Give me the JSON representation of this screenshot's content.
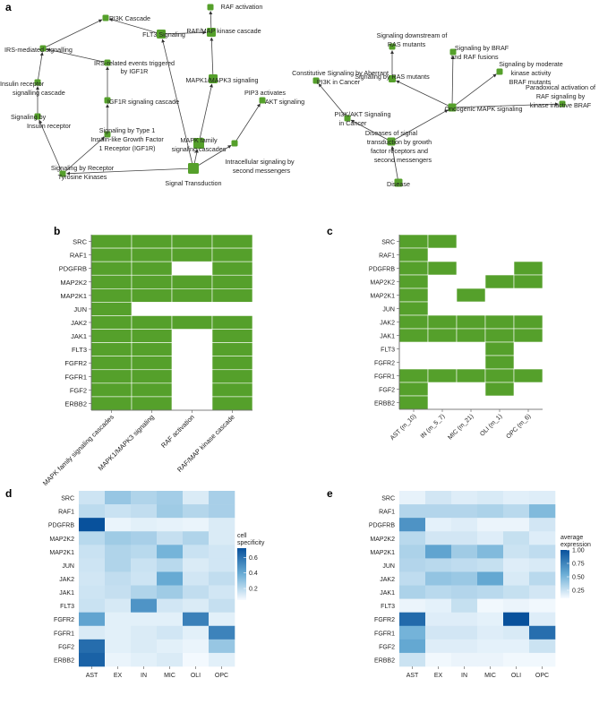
{
  "figure": {
    "panel_labels": [
      "a",
      "b",
      "c",
      "d",
      "e"
    ],
    "accent_color": "#55a02b",
    "network": {
      "nodes": [
        {
          "id": "n0",
          "label": "RAF activation"
        },
        {
          "id": "n1",
          "label": "PI3K Cascade"
        },
        {
          "id": "n2",
          "label": "RAF/MAP kinase cascade"
        },
        {
          "id": "n3",
          "label": "IRS-mediated signalling"
        },
        {
          "id": "n4",
          "label": "FLT3 Signaling"
        },
        {
          "id": "n5",
          "label": "IRS-related events triggered by IGF1R"
        },
        {
          "id": "n6",
          "label": "MAPK1/MAPK3 signaling"
        },
        {
          "id": "n7",
          "label": "Insulin receptor signalling cascade"
        },
        {
          "id": "n8",
          "label": "IGF1R signaling cascade"
        },
        {
          "id": "n9",
          "label": "Signaling by Insulin receptor"
        },
        {
          "id": "n10",
          "label": "PIP3 activates AKT signaling"
        },
        {
          "id": "n11",
          "label": "Signaling by Type 1 Insulin-like Growth Factor 1 Receptor (IGF1R)"
        },
        {
          "id": "n12",
          "label": "MAPK family signaling cascades"
        },
        {
          "id": "n13",
          "label": "Intracellular signaling by second messengers"
        },
        {
          "id": "n14",
          "label": "Signaling by Receptor Tyrosine Kinases"
        },
        {
          "id": "n15",
          "label": "Signal Transduction"
        },
        {
          "id": "n16",
          "label": "Signaling downstream of RAS mutants"
        },
        {
          "id": "n17",
          "label": "Signaling by BRAF and RAF fusions"
        },
        {
          "id": "n18",
          "label": "Signaling by moderate kinase activity BRAF mutants"
        },
        {
          "id": "n19",
          "label": "Constitutive Signaling by Aberrant PI3K in Cancer"
        },
        {
          "id": "n20",
          "label": "Signaling by RAS mutants"
        },
        {
          "id": "n21",
          "label": "Paradoxical activation of RAF signaling by kinase inactive BRAF"
        },
        {
          "id": "n22",
          "label": "Oncogenic MAPK signaling"
        },
        {
          "id": "n23",
          "label": "PI3K/AKT Signaling in Cancer"
        },
        {
          "id": "n24",
          "label": "Diseases of signal transduction by growth factor receptors and second messengers"
        },
        {
          "id": "n25",
          "label": "Disease"
        }
      ],
      "edges": [
        [
          "n15",
          "n14"
        ],
        [
          "n15",
          "n12"
        ],
        [
          "n15",
          "n13"
        ],
        [
          "n14",
          "n9"
        ],
        [
          "n14",
          "n11"
        ],
        [
          "n9",
          "n7"
        ],
        [
          "n7",
          "n3"
        ],
        [
          "n11",
          "n8"
        ],
        [
          "n8",
          "n5"
        ],
        [
          "n5",
          "n3"
        ],
        [
          "n3",
          "n1"
        ],
        [
          "n15",
          "n4"
        ],
        [
          "n4",
          "n1"
        ],
        [
          "n4",
          "n2"
        ],
        [
          "n12",
          "n6"
        ],
        [
          "n6",
          "n2"
        ],
        [
          "n2",
          "n0"
        ],
        [
          "n13",
          "n10"
        ],
        [
          "n25",
          "n24"
        ],
        [
          "n24",
          "n22"
        ],
        [
          "n24",
          "n23"
        ],
        [
          "n23",
          "n19"
        ],
        [
          "n22",
          "n20"
        ],
        [
          "n20",
          "n16"
        ],
        [
          "n22",
          "n17"
        ],
        [
          "n22",
          "n18"
        ],
        [
          "n22",
          "n21"
        ]
      ]
    },
    "panel_b": {
      "rows": [
        "SRC",
        "RAF1",
        "PDGFRB",
        "MAP2K2",
        "MAP2K1",
        "JUN",
        "JAK2",
        "JAK1",
        "FLT3",
        "FGFR2",
        "FGFR1",
        "FGF2",
        "ERBB2"
      ],
      "cols": [
        "MAPK family signaling cascades",
        "MAPK1/MAPK3 signaling",
        "RAF activation",
        "RAF/MAP kinase cascade"
      ],
      "matrix": [
        [
          1,
          1,
          1,
          1
        ],
        [
          1,
          1,
          1,
          1
        ],
        [
          1,
          1,
          0,
          1
        ],
        [
          1,
          1,
          1,
          1
        ],
        [
          1,
          1,
          1,
          1
        ],
        [
          1,
          0,
          0,
          0
        ],
        [
          1,
          1,
          1,
          1
        ],
        [
          1,
          1,
          0,
          1
        ],
        [
          1,
          1,
          0,
          1
        ],
        [
          1,
          1,
          0,
          1
        ],
        [
          1,
          1,
          0,
          1
        ],
        [
          1,
          1,
          0,
          1
        ],
        [
          1,
          1,
          0,
          1
        ]
      ]
    },
    "panel_c": {
      "rows": [
        "SRC",
        "RAF1",
        "PDGFRB",
        "MAP2K2",
        "MAP2K1",
        "JUN",
        "JAK2",
        "JAK1",
        "FLT3",
        "FGFR2",
        "FGFR1",
        "FGF2",
        "ERBB2"
      ],
      "cols": [
        "AST (m_10)",
        "IN (m_5_7)",
        "MIC (m_21)",
        "OLI (m_1)",
        "OPC (m_6)"
      ],
      "matrix": [
        [
          1,
          1,
          0,
          0,
          0
        ],
        [
          1,
          0,
          0,
          0,
          0
        ],
        [
          1,
          1,
          0,
          0,
          1
        ],
        [
          1,
          0,
          0,
          1,
          1
        ],
        [
          1,
          0,
          1,
          0,
          0
        ],
        [
          1,
          0,
          0,
          0,
          0
        ],
        [
          1,
          1,
          1,
          1,
          1
        ],
        [
          1,
          1,
          1,
          1,
          1
        ],
        [
          0,
          0,
          0,
          1,
          0
        ],
        [
          0,
          0,
          0,
          1,
          0
        ],
        [
          1,
          1,
          1,
          1,
          1
        ],
        [
          1,
          0,
          0,
          1,
          0
        ],
        [
          1,
          0,
          0,
          0,
          0
        ]
      ]
    },
    "panel_d": {
      "rows": [
        "SRC",
        "RAF1",
        "PDGFRB",
        "MAP2K2",
        "MAP2K1",
        "JUN",
        "JAK2",
        "JAK1",
        "FLT3",
        "FGFR2",
        "FGFR1",
        "FGF2",
        "ERBB2"
      ],
      "cols": [
        "AST",
        "EX",
        "IN",
        "MIC",
        "OLI",
        "OPC"
      ],
      "legend_title": "cell specificity",
      "legend_ticks": [
        "0.6",
        "0.4",
        "0.2"
      ],
      "scale_min": 0.05,
      "scale_max": 0.72,
      "matrix": [
        [
          0.15,
          0.28,
          0.22,
          0.25,
          0.12,
          0.24
        ],
        [
          0.19,
          0.16,
          0.18,
          0.26,
          0.21,
          0.24
        ],
        [
          0.72,
          0.08,
          0.1,
          0.09,
          0.08,
          0.12
        ],
        [
          0.2,
          0.26,
          0.24,
          0.17,
          0.22,
          0.12
        ],
        [
          0.16,
          0.22,
          0.2,
          0.36,
          0.16,
          0.14
        ],
        [
          0.15,
          0.22,
          0.16,
          0.2,
          0.12,
          0.14
        ],
        [
          0.14,
          0.18,
          0.15,
          0.4,
          0.14,
          0.18
        ],
        [
          0.15,
          0.17,
          0.22,
          0.26,
          0.18,
          0.14
        ],
        [
          0.16,
          0.13,
          0.48,
          0.14,
          0.12,
          0.17
        ],
        [
          0.42,
          0.1,
          0.1,
          0.1,
          0.55,
          0.1
        ],
        [
          0.12,
          0.1,
          0.12,
          0.14,
          0.1,
          0.54
        ],
        [
          0.62,
          0.1,
          0.12,
          0.1,
          0.08,
          0.28
        ],
        [
          0.66,
          0.08,
          0.1,
          0.12,
          0.06,
          0.1
        ]
      ]
    },
    "panel_e": {
      "rows": [
        "SRC",
        "RAF1",
        "PDGFRB",
        "MAP2K2",
        "MAP2K1",
        "JUN",
        "JAK2",
        "JAK1",
        "FLT3",
        "FGFR2",
        "FGFR1",
        "FGF2",
        "ERBB2"
      ],
      "cols": [
        "AST",
        "EX",
        "IN",
        "MIC",
        "OLI",
        "OPC"
      ],
      "legend_title": "average expression",
      "legend_ticks": [
        "1.00",
        "0.75",
        "0.50",
        "0.25"
      ],
      "scale_min": 0.1,
      "scale_max": 1.0,
      "matrix": [
        [
          0.15,
          0.22,
          0.18,
          0.2,
          0.17,
          0.18
        ],
        [
          0.32,
          0.32,
          0.32,
          0.34,
          0.3,
          0.48
        ],
        [
          0.68,
          0.16,
          0.18,
          0.14,
          0.14,
          0.22
        ],
        [
          0.3,
          0.22,
          0.22,
          0.18,
          0.26,
          0.18
        ],
        [
          0.34,
          0.6,
          0.38,
          0.48,
          0.24,
          0.28
        ],
        [
          0.32,
          0.3,
          0.28,
          0.26,
          0.18,
          0.2
        ],
        [
          0.28,
          0.42,
          0.4,
          0.58,
          0.2,
          0.3
        ],
        [
          0.34,
          0.3,
          0.32,
          0.3,
          0.26,
          0.22
        ],
        [
          0.14,
          0.16,
          0.26,
          0.12,
          0.14,
          0.12
        ],
        [
          0.88,
          0.18,
          0.18,
          0.16,
          1.0,
          0.18
        ],
        [
          0.52,
          0.22,
          0.22,
          0.18,
          0.2,
          0.86
        ],
        [
          0.58,
          0.18,
          0.18,
          0.16,
          0.16,
          0.24
        ],
        [
          0.24,
          0.12,
          0.14,
          0.14,
          0.12,
          0.12
        ]
      ]
    }
  }
}
